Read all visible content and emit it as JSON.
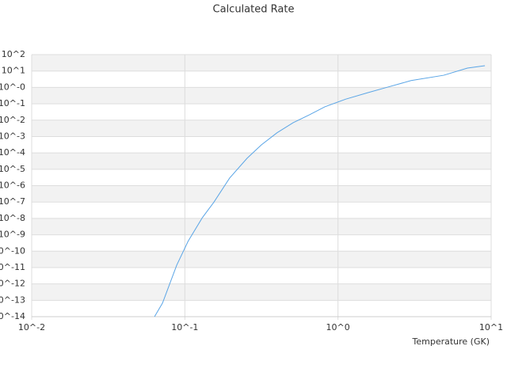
{
  "chart_data": {
    "type": "line",
    "title": "Calculated Rate",
    "x_label": "Temperature (GK)",
    "x_log": true,
    "y_log": true,
    "grid": true,
    "banded": true,
    "xlim": [
      0.01,
      10
    ],
    "ylim": [
      1e-14,
      100
    ],
    "xticks": [
      {
        "value": 0.01,
        "label": "10^-2"
      },
      {
        "value": 0.1,
        "label": "10^-1"
      },
      {
        "value": 1,
        "label": "10^0"
      },
      {
        "value": 10,
        "label": "10^1"
      }
    ],
    "yticks": [
      {
        "value": 100,
        "label": "10^2"
      },
      {
        "value": 10,
        "label": "10^1"
      },
      {
        "value": 1,
        "label": "10^-0"
      },
      {
        "value": 0.1,
        "label": "10^-1"
      },
      {
        "value": 0.01,
        "label": "10^-2"
      },
      {
        "value": 0.001,
        "label": "10^-3"
      },
      {
        "value": 0.0001,
        "label": "10^-4"
      },
      {
        "value": 1e-05,
        "label": "10^-5"
      },
      {
        "value": 1e-06,
        "label": "10^-6"
      },
      {
        "value": 1e-07,
        "label": "10^-7"
      },
      {
        "value": 1e-08,
        "label": "10^-8"
      },
      {
        "value": 1e-09,
        "label": "10^-9"
      },
      {
        "value": 1e-10,
        "label": "10^-10"
      },
      {
        "value": 1e-11,
        "label": "10^-11"
      },
      {
        "value": 1e-12,
        "label": "10^-12"
      },
      {
        "value": 1e-13,
        "label": "10^-13"
      },
      {
        "value": 1e-14,
        "label": "10^-14"
      }
    ],
    "x": [
      0.0634,
      0.0715,
      0.0885,
      0.105,
      0.13,
      0.155,
      0.196,
      0.255,
      0.316,
      0.4,
      0.51,
      0.65,
      0.82,
      1.12,
      1.57,
      2.12,
      3.0,
      4.9,
      7.0,
      9.1
    ],
    "series": [
      {
        "color": "#5aa5e6",
        "values": [
          1e-14,
          6.8e-14,
          1.4e-11,
          4e-10,
          1.1e-08,
          1e-07,
          2.9e-06,
          4.7e-05,
          0.00031,
          0.0017,
          0.007,
          0.021,
          0.065,
          0.19,
          0.48,
          1.05,
          2.6,
          5.5,
          15,
          21
        ]
      }
    ]
  }
}
